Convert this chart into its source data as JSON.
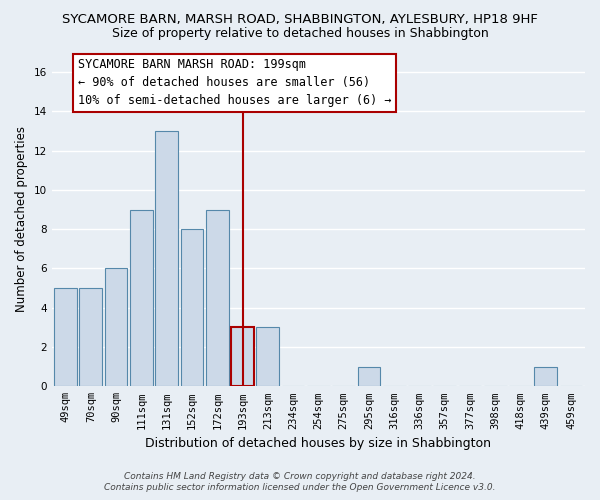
{
  "title": "SYCAMORE BARN, MARSH ROAD, SHABBINGTON, AYLESBURY, HP18 9HF",
  "subtitle": "Size of property relative to detached houses in Shabbington",
  "xlabel": "Distribution of detached houses by size in Shabbington",
  "ylabel": "Number of detached properties",
  "bar_labels": [
    "49sqm",
    "70sqm",
    "90sqm",
    "111sqm",
    "131sqm",
    "152sqm",
    "172sqm",
    "193sqm",
    "213sqm",
    "234sqm",
    "254sqm",
    "275sqm",
    "295sqm",
    "316sqm",
    "336sqm",
    "357sqm",
    "377sqm",
    "398sqm",
    "418sqm",
    "439sqm",
    "459sqm"
  ],
  "bar_values": [
    5,
    5,
    6,
    9,
    13,
    8,
    9,
    3,
    3,
    0,
    0,
    0,
    1,
    0,
    0,
    0,
    0,
    0,
    0,
    1,
    0
  ],
  "bar_color": "#ccd9e8",
  "bar_edge_color": "#5588aa",
  "highlight_index": 7,
  "highlight_edge_color": "#aa0000",
  "vline_color": "#aa0000",
  "ylim": [
    0,
    17
  ],
  "yticks": [
    0,
    2,
    4,
    6,
    8,
    10,
    12,
    14,
    16
  ],
  "annotation_title": "SYCAMORE BARN MARSH ROAD: 199sqm",
  "annotation_line1": "← 90% of detached houses are smaller (56)",
  "annotation_line2": "10% of semi-detached houses are larger (6) →",
  "footer_line1": "Contains HM Land Registry data © Crown copyright and database right 2024.",
  "footer_line2": "Contains public sector information licensed under the Open Government Licence v3.0.",
  "bg_color": "#e8eef4",
  "plot_bg_color": "#e8eef4",
  "grid_color": "#ffffff",
  "annotation_box_bg": "#ffffff",
  "annotation_box_edge": "#aa0000",
  "title_fontsize": 9.5,
  "subtitle_fontsize": 9,
  "ylabel_fontsize": 8.5,
  "xlabel_fontsize": 9,
  "tick_fontsize": 7.5,
  "footer_fontsize": 6.5,
  "ann_fontsize": 8.5
}
